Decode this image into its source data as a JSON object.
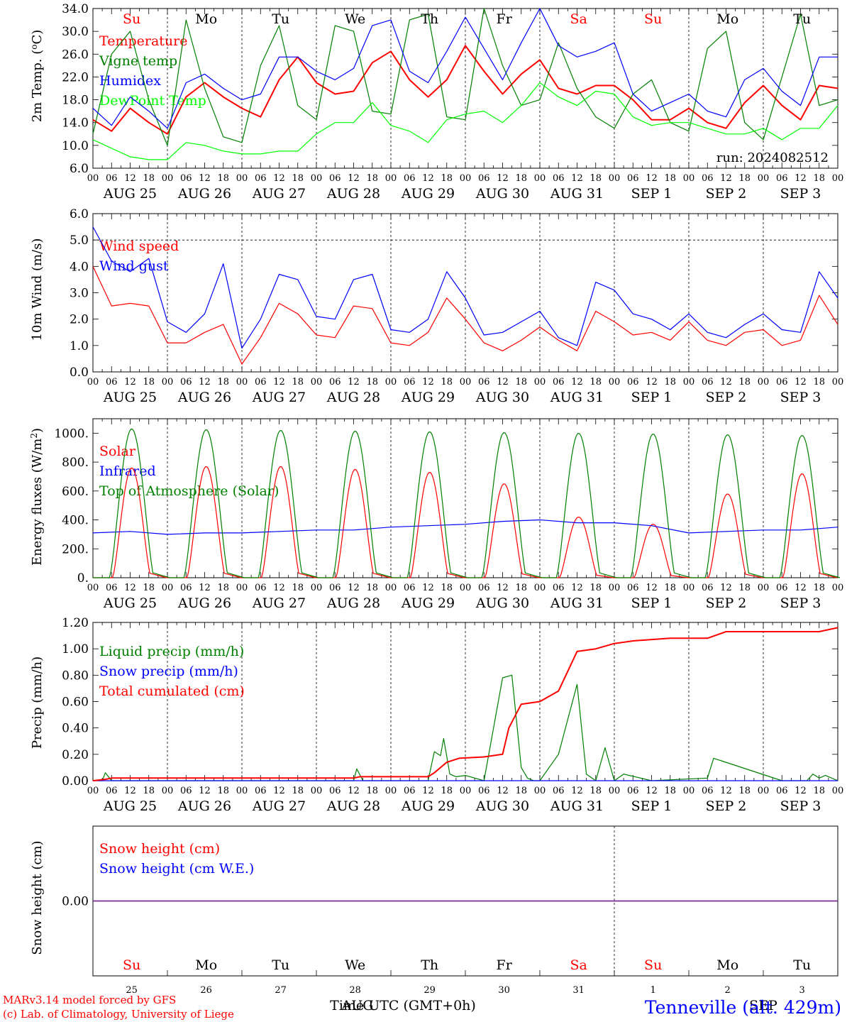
{
  "days": {
    "dates": [
      "AUG 25",
      "AUG 26",
      "AUG 27",
      "AUG 28",
      "AUG 29",
      "AUG 30",
      "AUG 31",
      "SEP  1",
      "SEP  2",
      "SEP  3"
    ],
    "weekdays": [
      "Su",
      "Mo",
      "Tu",
      "We",
      "Th",
      "Fr",
      "Sa",
      "Su",
      "Mo",
      "Tu"
    ],
    "weekday_colors": [
      "#ff0000",
      "#000000",
      "#000000",
      "#000000",
      "#000000",
      "#000000",
      "#ff0000",
      "#ff0000",
      "#000000",
      "#000000"
    ],
    "day_numbers": [
      "25",
      "26",
      "27",
      "28",
      "29",
      "30",
      "31",
      "1",
      "2",
      "3"
    ],
    "hour_ticks": [
      "00",
      "06",
      "12",
      "18"
    ],
    "last_hour_tick": "00"
  },
  "footer": {
    "credit_line1": "MARv3.14 model forced by GFS",
    "credit_line2": "(c) Lab. of Climatology, University of Liege",
    "time_label": "Time UTC (GMT+0h)",
    "overlap_month1": "AUG",
    "overlap_month2": "SEP",
    "station": "Tenneville (alt. 429m)"
  },
  "chart_data": [
    {
      "type": "line",
      "ylabel": "2m Temp. (oC)",
      "ylim": [
        6.0,
        34.0
      ],
      "yticks": [
        "6.0",
        "10.0",
        "14.0",
        "18.0",
        "22.0",
        "26.0",
        "30.0",
        "34.0"
      ],
      "annotation": "run: 2024082512",
      "x_unit": "hours since AUG 25 00 UTC",
      "series": [
        {
          "name": "Temperature",
          "color": "#ff0000",
          "x": [
            0,
            6,
            12,
            18,
            24,
            30,
            36,
            42,
            48,
            54,
            60,
            66,
            72,
            78,
            84,
            90,
            96,
            102,
            108,
            114,
            120,
            126,
            132,
            138,
            144,
            150,
            156,
            162,
            168,
            174,
            180,
            186,
            192,
            198,
            204,
            210,
            216,
            222,
            228,
            234,
            240
          ],
          "y": [
            14.5,
            12.5,
            16.5,
            14,
            12,
            18.5,
            21,
            18.5,
            16.5,
            15,
            21.5,
            25.5,
            21,
            19,
            19.5,
            24.5,
            26.5,
            21.5,
            18.5,
            21.5,
            27.5,
            23,
            19,
            22.5,
            25,
            20,
            19,
            20.5,
            20.5,
            18,
            14.5,
            14.5,
            16.5,
            14,
            13,
            17.5,
            20.5,
            17,
            14.5,
            20.5,
            20
          ]
        },
        {
          "name": "Vigne temp",
          "color": "#008000",
          "x": [
            0,
            6,
            12,
            18,
            24,
            30,
            36,
            42,
            48,
            54,
            60,
            66,
            72,
            78,
            84,
            90,
            96,
            102,
            108,
            114,
            120,
            126,
            132,
            138,
            144,
            150,
            156,
            162,
            168,
            174,
            180,
            186,
            192,
            198,
            204,
            210,
            216,
            222,
            228,
            234,
            240
          ],
          "y": [
            12,
            26,
            30,
            18,
            10,
            32,
            20,
            11.5,
            10.5,
            24,
            31,
            17,
            14.5,
            31,
            30,
            16,
            15.5,
            32,
            33,
            15,
            14.5,
            34,
            24,
            17,
            18,
            28,
            20,
            15,
            13,
            19,
            21.5,
            14,
            12.5,
            27,
            30,
            14,
            11,
            22,
            33,
            17,
            18
          ]
        },
        {
          "name": "Humidex",
          "color": "#0000ff",
          "x": [
            0,
            6,
            12,
            18,
            24,
            30,
            36,
            42,
            48,
            54,
            60,
            66,
            72,
            78,
            84,
            90,
            96,
            102,
            108,
            114,
            120,
            126,
            132,
            138,
            144,
            150,
            156,
            162,
            168,
            174,
            180,
            186,
            192,
            198,
            204,
            210,
            216,
            222,
            228,
            234,
            240
          ],
          "y": [
            16.5,
            13.5,
            18.5,
            16,
            13,
            21,
            22.5,
            20,
            18,
            19,
            25.5,
            25.5,
            23,
            21.5,
            23.5,
            31,
            32,
            23,
            21,
            26.5,
            32.5,
            27,
            21.5,
            28,
            34,
            27.5,
            25.5,
            26.5,
            28,
            19,
            16,
            17.5,
            19,
            16,
            15,
            21.5,
            23.5,
            19.5,
            17,
            25.5,
            25.5
          ]
        },
        {
          "name": "DewPoint Temp",
          "color": "#00ff00",
          "x": [
            0,
            6,
            12,
            18,
            24,
            30,
            36,
            42,
            48,
            54,
            60,
            66,
            72,
            78,
            84,
            90,
            96,
            102,
            108,
            114,
            120,
            126,
            132,
            138,
            144,
            150,
            156,
            162,
            168,
            174,
            180,
            186,
            192,
            198,
            204,
            210,
            216,
            222,
            228,
            234,
            240
          ],
          "y": [
            11,
            9.5,
            8,
            7.5,
            7.5,
            10.5,
            10,
            9,
            8.5,
            8.5,
            9,
            9,
            12,
            14,
            14,
            17.5,
            13.5,
            12.5,
            10.5,
            14.5,
            15.5,
            16,
            14,
            17,
            21,
            18.5,
            17,
            19.5,
            19,
            15,
            13.5,
            14,
            14,
            13,
            12,
            12,
            13,
            11,
            13,
            13,
            17
          ]
        }
      ]
    },
    {
      "type": "line",
      "ylabel": "10m Wind (m/s)",
      "ylim": [
        0.0,
        6.0
      ],
      "yticks": [
        "0.0",
        "1.0",
        "2.0",
        "3.0",
        "4.0",
        "5.0",
        "6.0"
      ],
      "x_unit": "hours since AUG 25 00 UTC",
      "series": [
        {
          "name": "Wind speed",
          "color": "#ff0000",
          "x": [
            0,
            6,
            12,
            18,
            24,
            30,
            36,
            42,
            48,
            54,
            60,
            66,
            72,
            78,
            84,
            90,
            96,
            102,
            108,
            114,
            120,
            126,
            132,
            138,
            144,
            150,
            156,
            162,
            168,
            174,
            180,
            186,
            192,
            198,
            204,
            210,
            216,
            222,
            228,
            234,
            240
          ],
          "y": [
            4,
            2.5,
            2.6,
            2.5,
            1.1,
            1.1,
            1.5,
            1.8,
            0.3,
            1.3,
            2.6,
            2.2,
            1.4,
            1.3,
            2.5,
            2.4,
            1.1,
            1,
            1.5,
            2.8,
            2,
            1.1,
            0.8,
            1.2,
            1.7,
            1.2,
            0.8,
            2.3,
            1.9,
            1.4,
            1.5,
            1.2,
            1.9,
            1.2,
            1,
            1.5,
            1.6,
            1,
            1.2,
            2.9,
            1.8
          ]
        },
        {
          "name": "Wind gust",
          "color": "#0000ff",
          "x": [
            0,
            6,
            12,
            18,
            24,
            30,
            36,
            42,
            48,
            54,
            60,
            66,
            72,
            78,
            84,
            90,
            96,
            102,
            108,
            114,
            120,
            126,
            132,
            138,
            144,
            150,
            156,
            162,
            168,
            174,
            180,
            186,
            192,
            198,
            204,
            210,
            216,
            222,
            228,
            234,
            240
          ],
          "y": [
            5.5,
            4.2,
            3.8,
            4.3,
            1.9,
            1.5,
            2.2,
            4.1,
            0.9,
            2,
            3.7,
            3.5,
            2.1,
            2,
            3.5,
            3.7,
            1.6,
            1.5,
            2,
            3.8,
            2.8,
            1.4,
            1.5,
            1.9,
            2.3,
            1.3,
            1,
            3.4,
            3.1,
            2.2,
            2,
            1.6,
            2.2,
            1.5,
            1.3,
            1.8,
            2.2,
            1.6,
            1.5,
            3.8,
            2.8
          ]
        }
      ]
    },
    {
      "type": "line",
      "ylabel": "Energy fluxes (W/m2)",
      "ylim": [
        0,
        1100
      ],
      "yticks": [
        "0.",
        "200.",
        "400.",
        "600.",
        "800.",
        "1000."
      ],
      "x_unit": "hours since AUG 25 00 UTC",
      "series": [
        {
          "name": "Solar",
          "color": "#ff0000",
          "daily_peak": [
            760,
            770,
            770,
            750,
            730,
            650,
            420,
            370,
            580,
            720
          ]
        },
        {
          "name": "Infrared",
          "color": "#0000ff",
          "x": [
            0,
            12,
            24,
            36,
            48,
            60,
            72,
            84,
            96,
            108,
            120,
            132,
            144,
            156,
            168,
            180,
            192,
            204,
            216,
            228,
            240
          ],
          "y": [
            310,
            320,
            300,
            310,
            310,
            320,
            330,
            330,
            350,
            360,
            370,
            390,
            400,
            380,
            380,
            360,
            310,
            320,
            330,
            330,
            350
          ]
        },
        {
          "name": "Top of Atmosphere (Solar)",
          "color": "#008000",
          "daily_peak": [
            1030,
            1025,
            1020,
            1015,
            1010,
            1005,
            1000,
            995,
            990,
            985
          ]
        }
      ]
    },
    {
      "type": "line",
      "ylabel": "Precip (mm/h)",
      "ylim": [
        0.0,
        1.2
      ],
      "yticks": [
        "0.00",
        "0.20",
        "0.40",
        "0.60",
        "0.80",
        "1.00",
        "1.20"
      ],
      "x_unit": "hours since AUG 25 00 UTC",
      "series": [
        {
          "name": "Liquid precip (mm/h)",
          "color": "#008000",
          "x": [
            0,
            3,
            4,
            6,
            8,
            60,
            84,
            85,
            87,
            108,
            110,
            112,
            113,
            115,
            117,
            120,
            126,
            132,
            135,
            138,
            140,
            142,
            144,
            150,
            156,
            159,
            162,
            165,
            168,
            171,
            180,
            198,
            200,
            222,
            230,
            232,
            234,
            236,
            240
          ],
          "y": [
            0,
            0,
            0.06,
            0,
            0,
            0,
            0,
            0.09,
            0,
            0,
            0.22,
            0.19,
            0.32,
            0.05,
            0.03,
            0.04,
            0,
            0.78,
            0.8,
            0.1,
            0.02,
            0,
            0,
            0.2,
            0.73,
            0.05,
            0,
            0.25,
            0,
            0.05,
            0,
            0.02,
            0.17,
            0,
            0,
            0.05,
            0.02,
            0.04,
            0
          ]
        },
        {
          "name": "Snow precip (mm/h)",
          "color": "#0000ff",
          "x": [
            0,
            240
          ],
          "y": [
            0,
            0
          ]
        },
        {
          "name": "Total cumulated (cm)",
          "color": "#ff0000",
          "x": [
            0,
            4,
            6,
            84,
            86,
            108,
            110,
            114,
            118,
            126,
            132,
            134,
            138,
            144,
            150,
            156,
            162,
            168,
            174,
            186,
            198,
            204,
            216,
            234,
            240
          ],
          "y": [
            0,
            0.01,
            0.02,
            0.02,
            0.03,
            0.03,
            0.06,
            0.14,
            0.17,
            0.18,
            0.2,
            0.4,
            0.58,
            0.6,
            0.68,
            0.98,
            1.0,
            1.04,
            1.06,
            1.08,
            1.08,
            1.13,
            1.13,
            1.13,
            1.16
          ]
        }
      ]
    },
    {
      "type": "line",
      "ylabel": "Snow height (cm)",
      "ylim": [
        -1,
        1
      ],
      "yticks": [
        "0.00"
      ],
      "series": [
        {
          "name": "Snow height (cm)",
          "color": "#ff0000",
          "x": [
            0,
            240
          ],
          "y": [
            0,
            0
          ]
        },
        {
          "name": "Snow height (cm W.E.)",
          "color": "#0000ff",
          "x": [
            0,
            240
          ],
          "y": [
            0,
            0
          ]
        }
      ]
    }
  ]
}
